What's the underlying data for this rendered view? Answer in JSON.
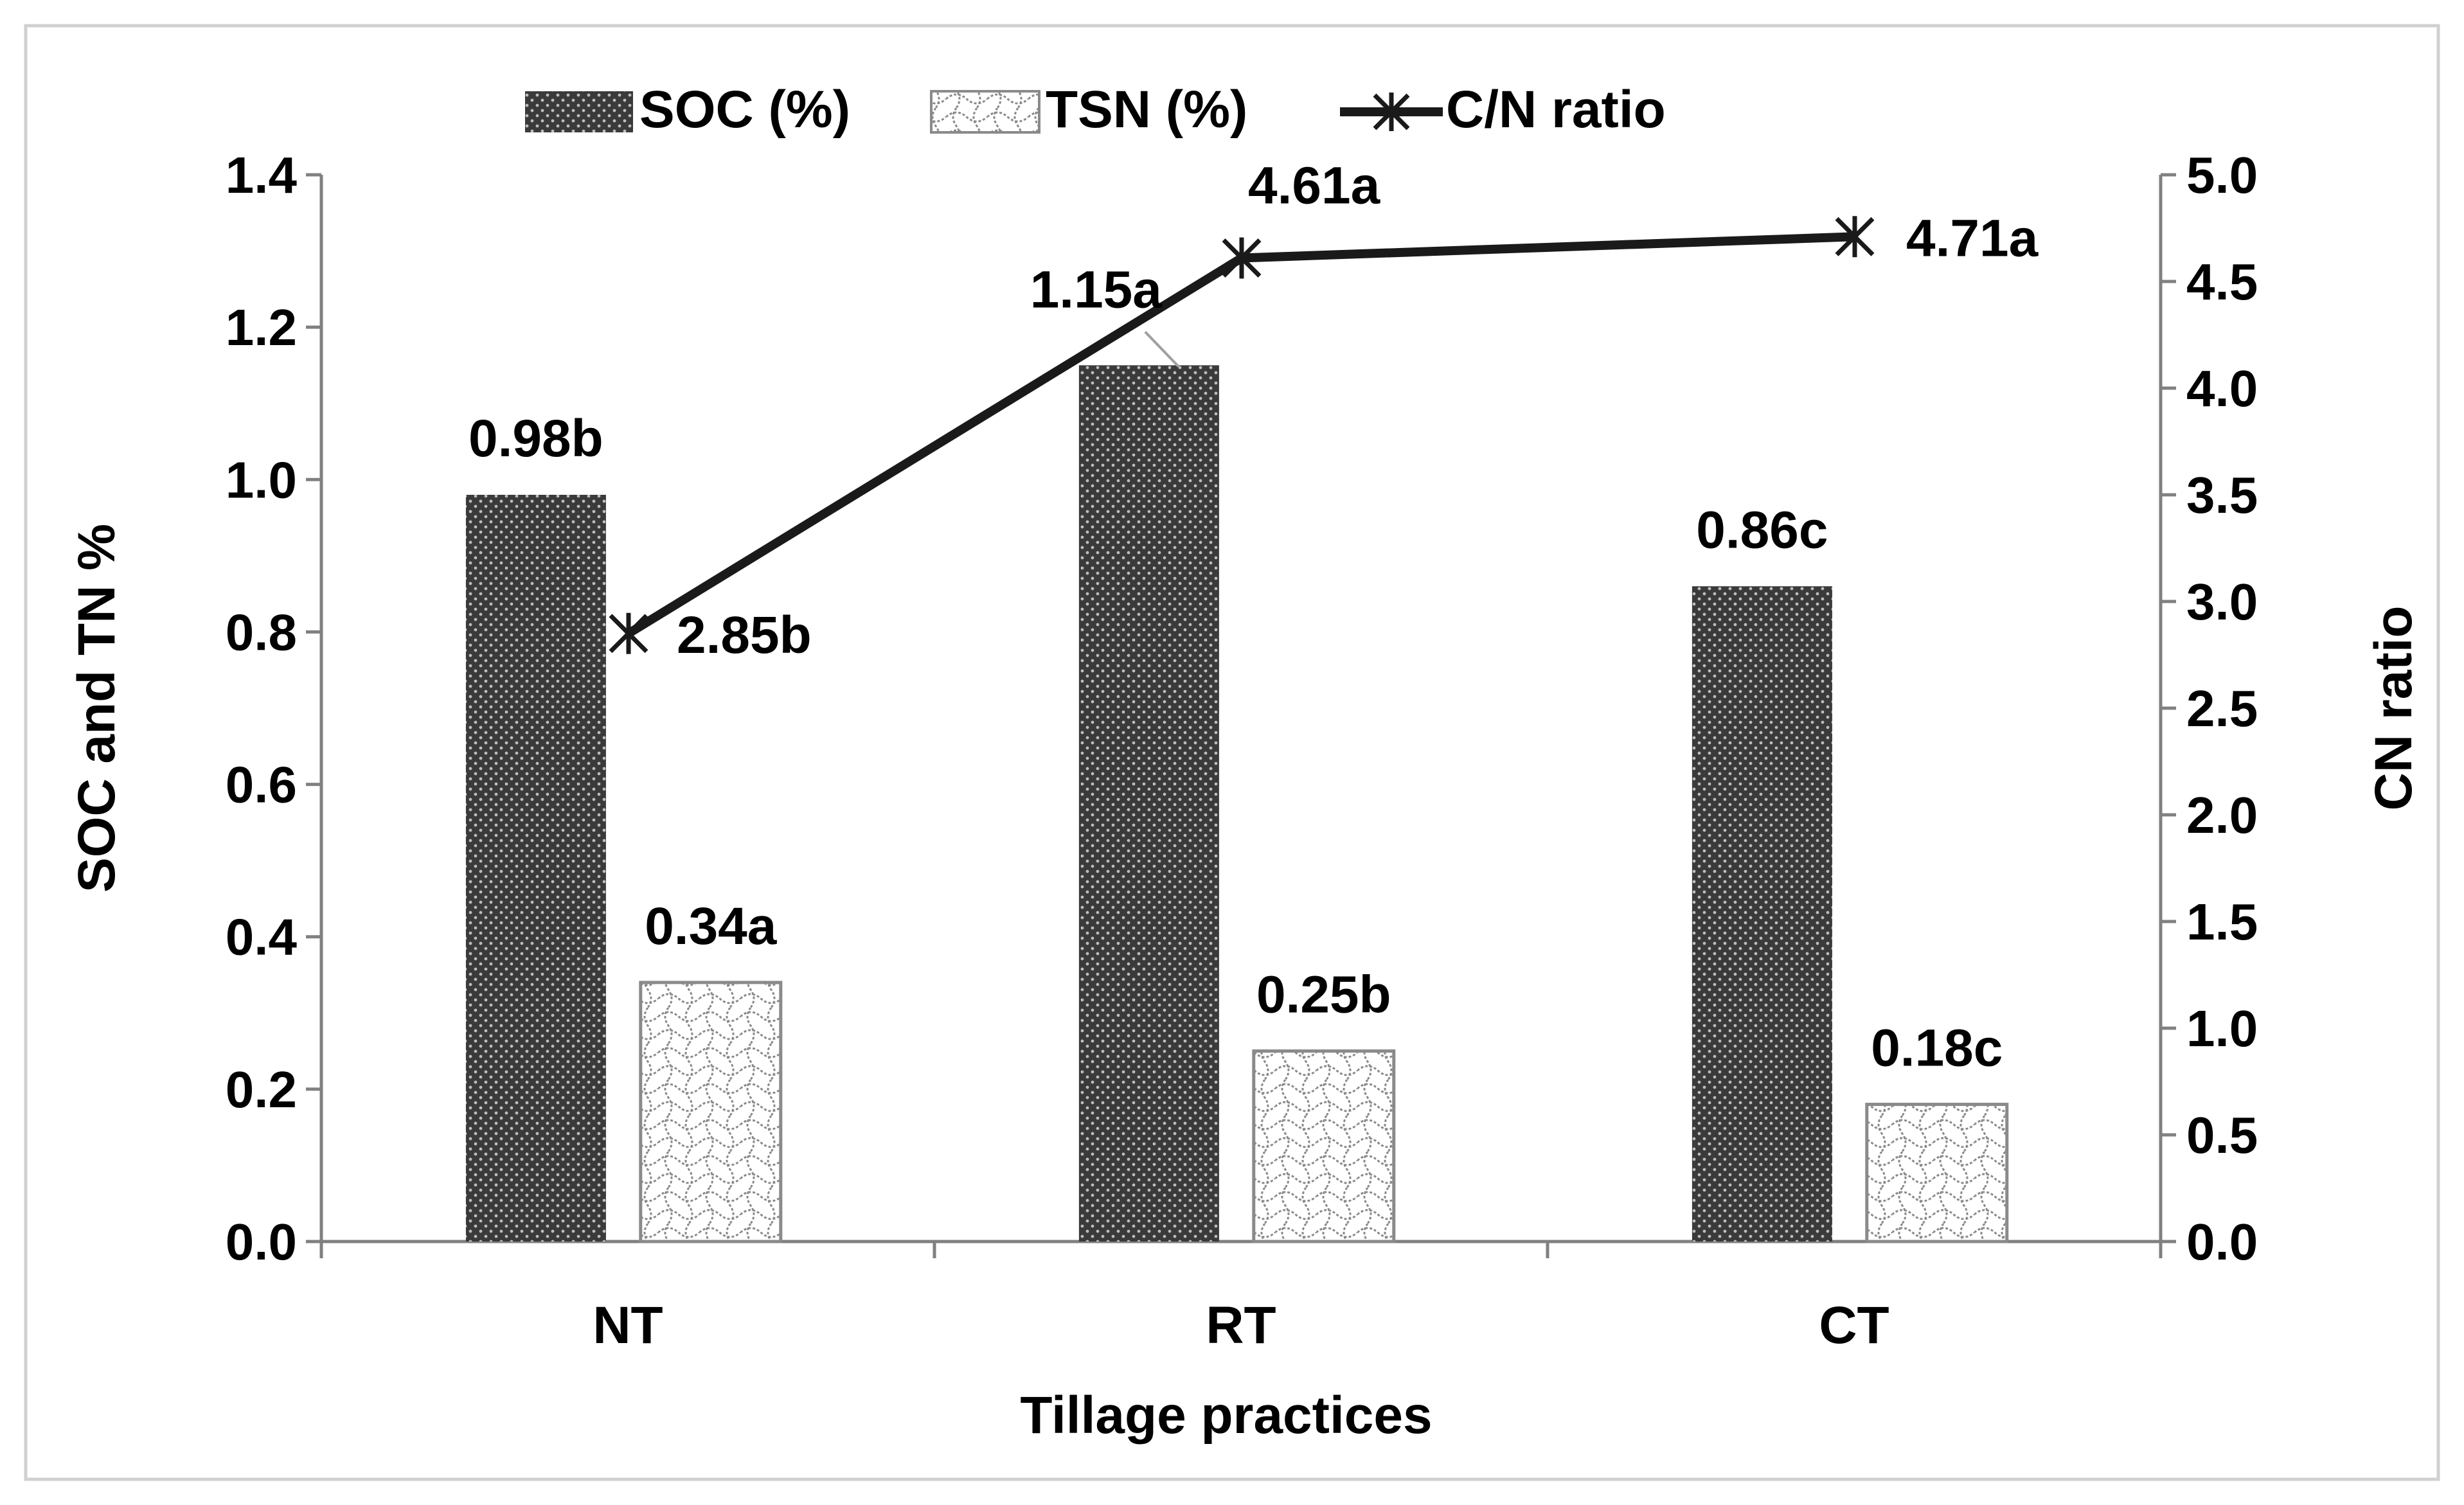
{
  "chart_data": {
    "type": "bar",
    "categories": [
      "NT",
      "RT",
      "CT"
    ],
    "xlabel": "Tillage practices",
    "ylabel": "SOC and TN %",
    "y2label": "CN ratio",
    "ylim": [
      0,
      1.4
    ],
    "y2lim": [
      0,
      5.0
    ],
    "yticks": [
      "0.0",
      "0.2",
      "0.4",
      "0.6",
      "0.8",
      "1.0",
      "1.2",
      "1.4"
    ],
    "y2ticks": [
      "0.0",
      "0.5",
      "1.0",
      "1.5",
      "2.0",
      "2.5",
      "3.0",
      "3.5",
      "4.0",
      "4.5",
      "5.0"
    ],
    "legend_position": "top",
    "grid": false,
    "series": [
      {
        "name": "SOC (%)",
        "kind": "bar",
        "axis": "left",
        "values": [
          0.98,
          1.15,
          0.86
        ],
        "labels": [
          "0.98b",
          "1.15a",
          "0.86c"
        ]
      },
      {
        "name": "TSN (%)",
        "kind": "bar",
        "axis": "left",
        "values": [
          0.34,
          0.25,
          0.18
        ],
        "labels": [
          "0.34a",
          "0.25b",
          "0.18c"
        ]
      },
      {
        "name": "C/N ratio",
        "kind": "line",
        "axis": "right",
        "marker": "asterisk",
        "values": [
          2.85,
          4.61,
          4.71
        ],
        "labels": [
          "2.85b",
          "4.61a",
          "4.71a"
        ]
      }
    ],
    "colors": {
      "soc": "#3a3a3a",
      "tsn_pattern": "#8a8a8a",
      "line": "#1a1a1a",
      "axis": "#808080",
      "frame": "#d0d0d0"
    }
  }
}
